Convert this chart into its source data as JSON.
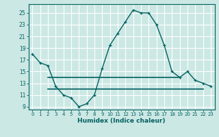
{
  "title": "",
  "xlabel": "Humidex (Indice chaleur)",
  "bg_color": "#cce8e4",
  "grid_color": "#ffffff",
  "line_color": "#006060",
  "xlim": [
    -0.5,
    23.5
  ],
  "ylim": [
    8.5,
    26.5
  ],
  "xticks": [
    0,
    1,
    2,
    3,
    4,
    5,
    6,
    7,
    8,
    9,
    10,
    11,
    12,
    13,
    14,
    15,
    16,
    17,
    18,
    19,
    20,
    21,
    22,
    23
  ],
  "yticks": [
    9,
    11,
    13,
    15,
    17,
    19,
    21,
    23,
    25
  ],
  "line1_x": [
    0,
    1,
    2,
    3,
    4,
    5,
    6,
    7,
    8,
    9,
    10,
    11,
    12,
    13,
    14,
    15,
    16,
    17,
    18,
    19,
    20,
    21,
    22,
    23
  ],
  "line1_y": [
    18.0,
    16.5,
    16.0,
    12.5,
    11.0,
    10.5,
    9.0,
    9.5,
    11.0,
    15.5,
    19.5,
    21.5,
    23.5,
    25.5,
    25.0,
    25.0,
    23.0,
    19.5,
    15.0,
    14.0,
    15.0,
    13.5,
    13.0,
    12.5
  ],
  "line2_x": [
    2,
    19
  ],
  "line2_y": [
    14.0,
    14.0
  ],
  "line3_x": [
    2,
    22
  ],
  "line3_y": [
    12.0,
    12.0
  ]
}
